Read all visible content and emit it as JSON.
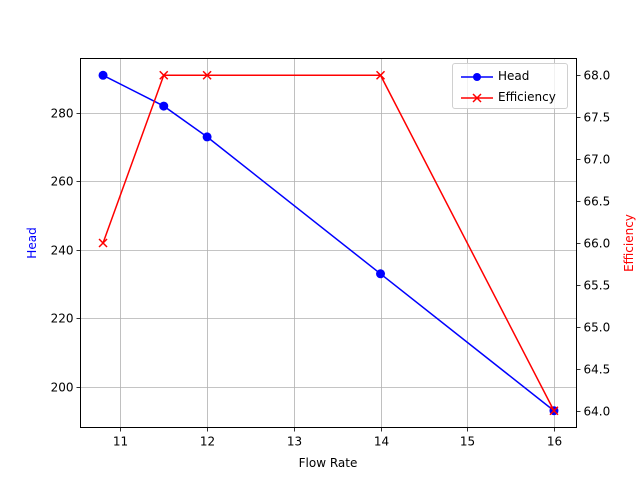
{
  "chart_data": {
    "type": "line",
    "title": "",
    "xlabel": "Flow Rate",
    "ylabel": "Head",
    "y2label": "Efficiency",
    "x": [
      10.8,
      11.5,
      12,
      14,
      16
    ],
    "series": [
      {
        "name": "Head",
        "axis": "left",
        "color": "#0000ff",
        "marker": "o",
        "values": [
          291,
          282,
          273,
          233,
          193
        ]
      },
      {
        "name": "Efficiency",
        "axis": "right",
        "color": "#ff0000",
        "marker": "x",
        "values": [
          66,
          68,
          68,
          68,
          64
        ]
      }
    ],
    "xticks": [
      "11",
      "12",
      "13",
      "14",
      "15",
      "16"
    ],
    "yticks": [
      "200",
      "220",
      "240",
      "260",
      "280"
    ],
    "y2ticks": [
      "64.0",
      "64.5",
      "65.0",
      "65.5",
      "66.0",
      "66.5",
      "67.0",
      "67.5",
      "68.0"
    ],
    "xlim": [
      10.54,
      16.26
    ],
    "ylim": [
      188.1,
      295.9
    ],
    "y2lim": [
      63.8,
      68.2
    ],
    "grid": true,
    "legend_position": "upper right"
  },
  "legend": {
    "items": [
      {
        "label": "Head",
        "color": "#0000ff"
      },
      {
        "label": "Efficiency",
        "color": "#ff0000"
      }
    ]
  }
}
